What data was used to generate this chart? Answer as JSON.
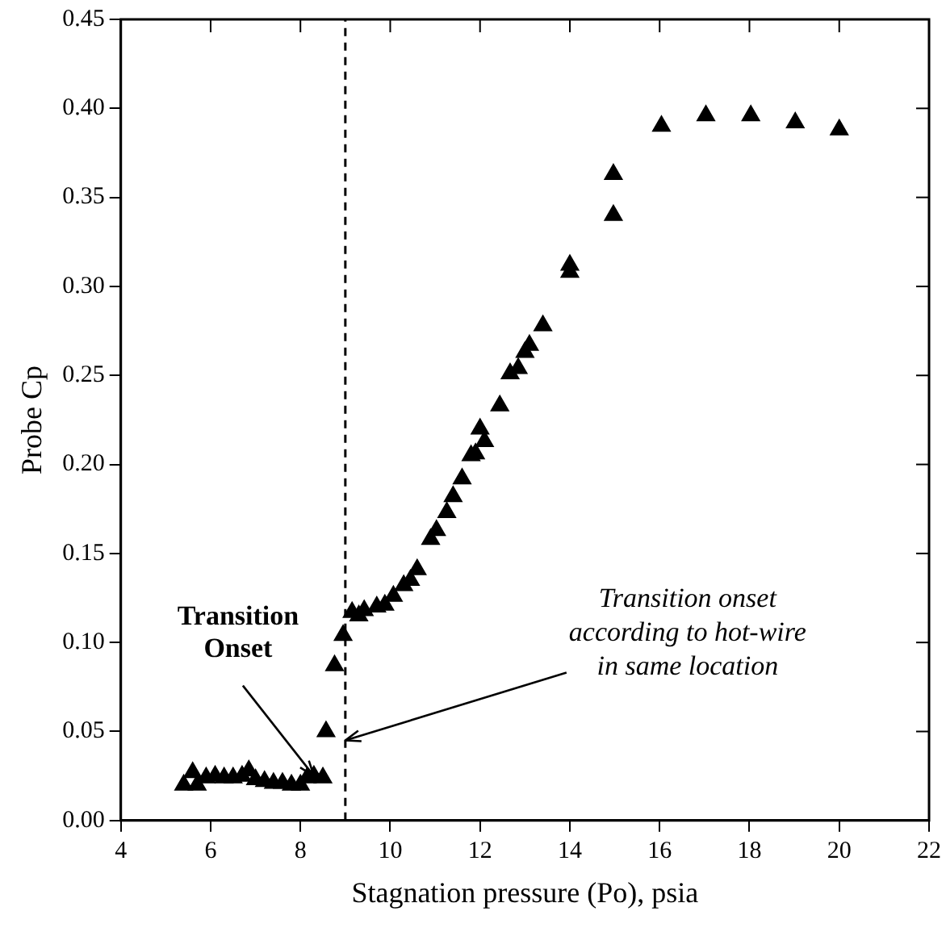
{
  "chart_data": {
    "type": "scatter",
    "xlabel": "Stagnation pressure (Po), psia",
    "ylabel": "Probe Cp",
    "x": [
      5.4,
      5.6,
      5.7,
      5.9,
      6.1,
      6.3,
      6.5,
      6.7,
      6.85,
      7.0,
      7.2,
      7.4,
      7.6,
      7.8,
      8.0,
      8.15,
      8.3,
      8.5,
      8.57,
      8.76,
      8.95,
      9.15,
      9.3,
      9.42,
      9.7,
      9.88,
      10.07,
      10.3,
      10.45,
      10.6,
      10.9,
      11.03,
      11.26,
      11.4,
      11.6,
      11.8,
      11.9,
      12.0,
      12.1,
      12.44,
      12.67,
      12.85,
      13.0,
      13.1,
      13.4,
      14.0,
      14.0,
      14.97,
      14.97,
      16.04,
      17.03,
      18.03,
      19.02,
      20.0
    ],
    "series": [
      {
        "color": "#000000",
        "values": [
          0.02,
          0.027,
          0.02,
          0.024,
          0.025,
          0.024,
          0.024,
          0.025,
          0.028,
          0.023,
          0.022,
          0.021,
          0.021,
          0.02,
          0.02,
          0.024,
          0.025,
          0.024,
          0.05,
          0.087,
          0.104,
          0.117,
          0.115,
          0.118,
          0.12,
          0.121,
          0.126,
          0.132,
          0.135,
          0.141,
          0.158,
          0.163,
          0.173,
          0.182,
          0.192,
          0.205,
          0.206,
          0.22,
          0.213,
          0.233,
          0.251,
          0.254,
          0.263,
          0.267,
          0.278,
          0.308,
          0.312,
          0.34,
          0.363,
          0.39,
          0.396,
          0.396,
          0.392,
          0.388
        ]
      }
    ],
    "xlim": [
      4,
      22
    ],
    "xticks": [
      4,
      6,
      8,
      10,
      12,
      14,
      16,
      18,
      20,
      22
    ],
    "ylim": [
      0,
      0.45
    ],
    "yticks": [
      {
        "value": 0,
        "label": "0.00"
      },
      {
        "value": 0.05,
        "label": "0.05"
      },
      {
        "value": 0.1,
        "label": "0.10"
      },
      {
        "value": 0.15,
        "label": "0.15"
      },
      {
        "value": 0.2,
        "label": "0.20"
      },
      {
        "value": 0.25,
        "label": "0.25"
      },
      {
        "value": 0.3,
        "label": "0.30"
      },
      {
        "value": 0.35,
        "label": "0.35"
      },
      {
        "value": 0.4,
        "label": "0.40"
      },
      {
        "value": 0.45,
        "label": "0.45"
      }
    ],
    "ref_lines": [
      {
        "axis": "x",
        "value": 9,
        "line_style": "dashed"
      }
    ],
    "annotations": [
      {
        "text": "Transition Onset",
        "x": 8.3,
        "y": 0.025
      },
      {
        "text": "Transition onset according to hot-wire in same location",
        "x": 9,
        "y": 0.045
      }
    ],
    "marker": "triangle",
    "grid": false,
    "legend": false
  }
}
